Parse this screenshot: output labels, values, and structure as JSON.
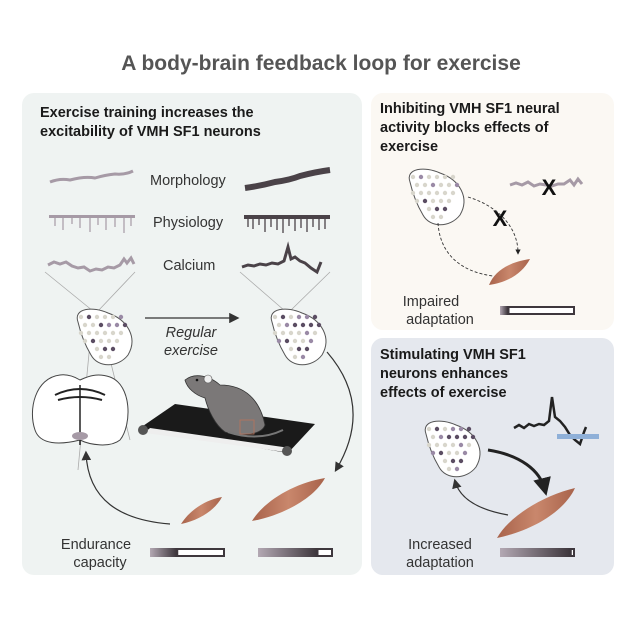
{
  "title": "A body-brain feedback loop for exercise",
  "colors": {
    "left_panel_bg": "#eff3f2",
    "top_right_bg": "#fbf8f3",
    "bottom_right_bg": "#e5e8ee",
    "muscle": "#b9745a",
    "trace_light": "#a69aa6",
    "trace_dark": "#4a4248",
    "stim_bar": "#8fb0d8"
  },
  "left_panel": {
    "heading_lines": [
      "Exercise training increases the",
      "excitability of VMH SF1 neurons"
    ],
    "rows": [
      "Morphology",
      "Physiology",
      "Calcium"
    ],
    "arrow_label_lines": [
      "Regular",
      "exercise"
    ],
    "bottom_label_lines": [
      "Endurance",
      "capacity"
    ],
    "bar_levels": {
      "before": 0.35,
      "after": 0.78
    }
  },
  "top_right_panel": {
    "heading_lines": [
      "Inhibiting VMH SF1 neural",
      "activity blocks effects of",
      "exercise"
    ],
    "block_marks": [
      "X",
      "X"
    ],
    "bottom_label_lines": [
      "Impaired",
      "adaptation"
    ],
    "bar_level": 0.1
  },
  "bottom_right_panel": {
    "heading_lines": [
      "Stimulating VMH SF1",
      "neurons enhances",
      "effects of exercise"
    ],
    "bottom_label_lines": [
      "Increased",
      "adaptation"
    ],
    "bar_level": 0.93
  }
}
